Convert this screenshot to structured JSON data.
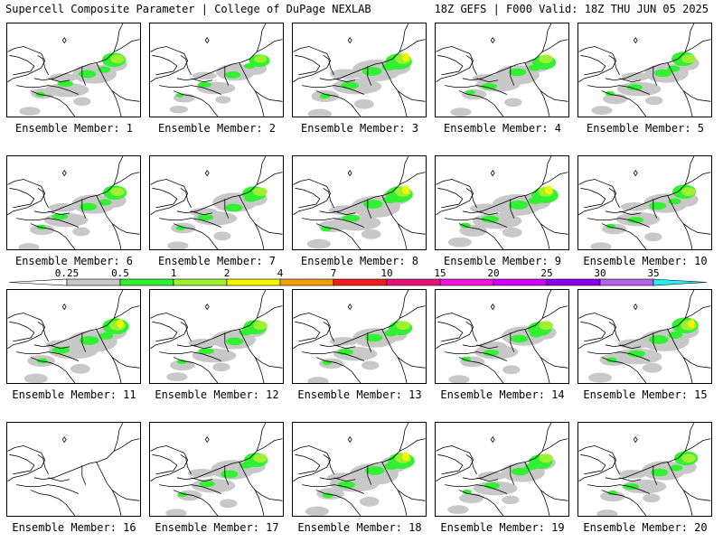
{
  "header": {
    "left": "Supercell Composite Parameter | College of DuPage NEXLAB",
    "right": "18Z GEFS | F000 Valid: 18Z THU JUN 05 2025"
  },
  "member_label_prefix": "Ensemble Member: ",
  "members": [
    {
      "id": 1,
      "intensity": 2
    },
    {
      "id": 2,
      "intensity": 1
    },
    {
      "id": 3,
      "intensity": 3
    },
    {
      "id": 4,
      "intensity": 2
    },
    {
      "id": 5,
      "intensity": 2
    },
    {
      "id": 6,
      "intensity": 2
    },
    {
      "id": 7,
      "intensity": 2
    },
    {
      "id": 8,
      "intensity": 3
    },
    {
      "id": 9,
      "intensity": 3
    },
    {
      "id": 10,
      "intensity": 2
    },
    {
      "id": 11,
      "intensity": 3
    },
    {
      "id": 12,
      "intensity": 2
    },
    {
      "id": 13,
      "intensity": 2
    },
    {
      "id": 14,
      "intensity": 2
    },
    {
      "id": 15,
      "intensity": 3
    },
    {
      "id": 16,
      "intensity": 0
    },
    {
      "id": 17,
      "intensity": 2
    },
    {
      "id": 18,
      "intensity": 3
    },
    {
      "id": 19,
      "intensity": 2
    },
    {
      "id": 20,
      "intensity": 2
    }
  ],
  "colorbar": {
    "labels": [
      "0.25",
      "0.5",
      "1",
      "2",
      "4",
      "7",
      "10",
      "15",
      "20",
      "25",
      "30",
      "35"
    ],
    "colors": [
      "#c8c8c8",
      "#32f032",
      "#a0f032",
      "#f5f500",
      "#f0a000",
      "#f01e1e",
      "#e61478",
      "#f014dc",
      "#d200ff",
      "#8c00f0",
      "#b464e6",
      "#28f0f0"
    ]
  }
}
